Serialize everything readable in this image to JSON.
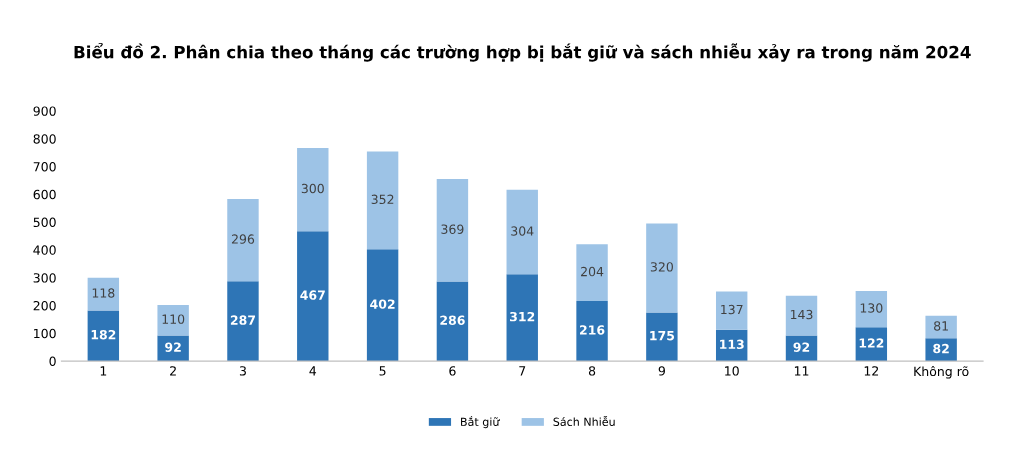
{
  "chart_data": {
    "type": "bar",
    "stacked": true,
    "title": "Biểu đồ 2. Phân chia theo tháng các trường hợp bị bắt giữ và sách nhiễu xảy ra trong năm 2024",
    "categories": [
      "1",
      "2",
      "3",
      "4",
      "5",
      "6",
      "7",
      "8",
      "9",
      "10",
      "11",
      "12",
      "Không rõ"
    ],
    "series": [
      {
        "name": "Bắt giữ",
        "color": "#2e75b6",
        "values": [
          182,
          92,
          287,
          467,
          402,
          286,
          312,
          216,
          175,
          113,
          92,
          122,
          82
        ]
      },
      {
        "name": "Sách Nhiễu",
        "color": "#9dc3e6",
        "values": [
          118,
          110,
          296,
          300,
          352,
          369,
          304,
          204,
          320,
          137,
          143,
          130,
          81
        ]
      }
    ],
    "ylim": [
      0,
      900
    ],
    "yticks": [
      0,
      100,
      200,
      300,
      400,
      500,
      600,
      700,
      800,
      900
    ],
    "data_labels": true,
    "legend": "bottom",
    "grid": false
  }
}
